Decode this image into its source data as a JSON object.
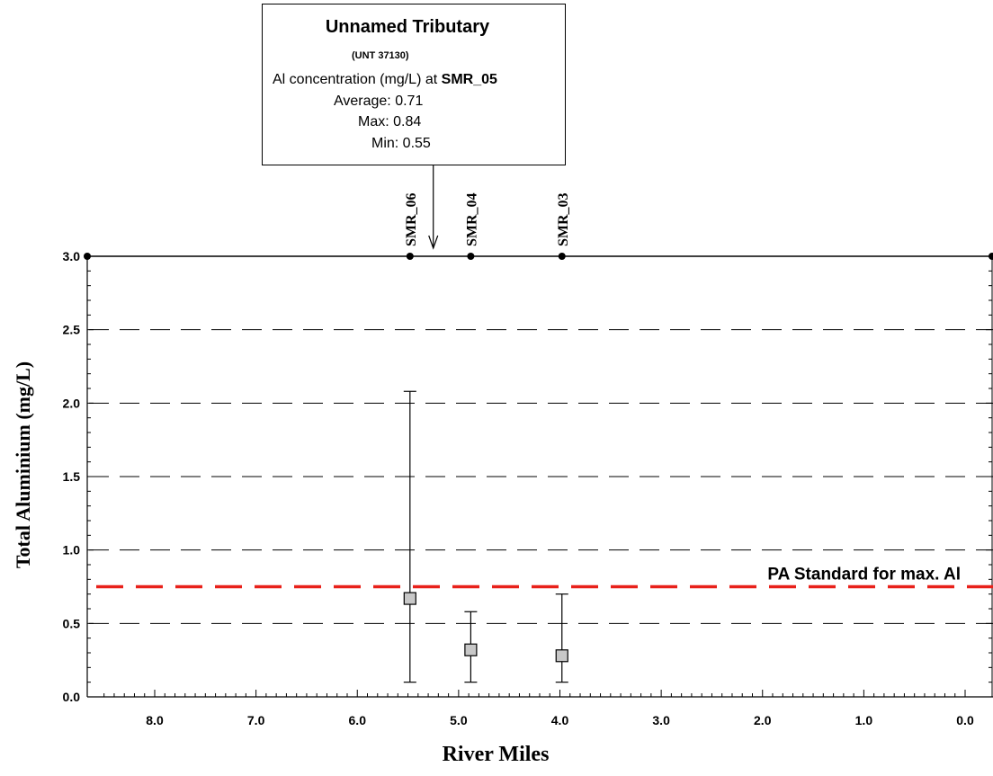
{
  "callout": {
    "title": "Unnamed Tributary",
    "code": "(UNT 37130)",
    "concentration_label": "Al concentration (mg/L) at",
    "station": "SMR_05",
    "average": "Average: 0.71",
    "max": "Max: 0.84",
    "min": "Min: 0.55"
  },
  "chart_data": {
    "type": "scatter",
    "xlabel": "River Miles",
    "ylabel": "Total Aluminium (mg/L)",
    "xlim": [
      8.5,
      -0.1
    ],
    "ylim": [
      0,
      3.0
    ],
    "x_ticks": [
      "8.0",
      "7.0",
      "6.0",
      "5.0",
      "4.0",
      "3.0",
      "2.0",
      "1.0",
      "0.0"
    ],
    "x_tick_values": [
      8,
      7,
      6,
      5,
      4,
      3,
      2,
      1,
      0
    ],
    "y_ticks": [
      "0.0",
      "0.5",
      "1.0",
      "1.5",
      "2.0",
      "2.5",
      "3.0"
    ],
    "y_tick_values": [
      0,
      0.5,
      1.0,
      1.5,
      2.0,
      2.5,
      3.0
    ],
    "grid": "horizontal dashed",
    "series": [
      {
        "points": [
          {
            "x": 5.48,
            "y": 0.67,
            "min": 0.1,
            "max": 2.08
          },
          {
            "x": 4.88,
            "y": 0.32,
            "min": 0.1,
            "max": 0.58
          },
          {
            "x": 3.98,
            "y": 0.28,
            "min": 0.1,
            "max": 0.7
          }
        ],
        "marker": "square",
        "color": "#c8c8c8"
      }
    ],
    "stations": [
      {
        "label": "SMR_06",
        "x": 5.48
      },
      {
        "label": "SMR_04",
        "x": 4.88
      },
      {
        "label": "SMR_03",
        "x": 3.98
      }
    ],
    "tributary_x": 5.25,
    "reference_line": {
      "label": "PA Standard for max. Al",
      "y": 0.75,
      "color": "#e8211a"
    }
  }
}
